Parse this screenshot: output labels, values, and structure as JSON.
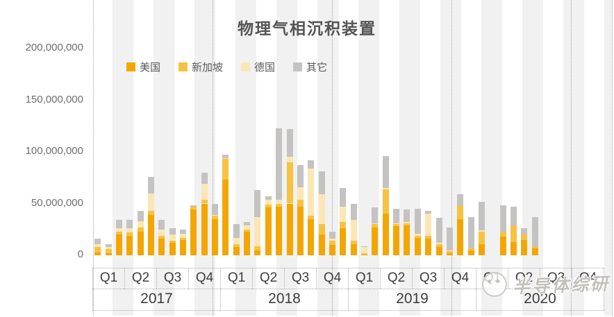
{
  "title": "物理气相沉积装置",
  "legend": {
    "items": [
      {
        "label": "美国",
        "color": "#F3A600"
      },
      {
        "label": "新加坡",
        "color": "#F6C242"
      },
      {
        "label": "德国",
        "color": "#FAE7B5"
      },
      {
        "label": "其它",
        "color": "#C4C3C1"
      }
    ]
  },
  "y_axis": {
    "tick_labels": [
      "200,000,000",
      "150,000,000",
      "100,000,000",
      "50,000,000",
      "0"
    ],
    "tick_values_millions": [
      200,
      150,
      100,
      50,
      0
    ]
  },
  "x_axis": {
    "quarter_labels": [
      "Q1",
      "Q2",
      "Q3",
      "Q4"
    ],
    "years": [
      "2017",
      "2018",
      "2019",
      "2020"
    ]
  },
  "watermark": {
    "text": "半导体综研"
  },
  "chart_data": {
    "type": "bar",
    "stacked": true,
    "title": "物理气相沉积装置",
    "unit": "values in millions (×1,000,000), read from y-axis",
    "ylim_millions": [
      0,
      200
    ],
    "grid": false,
    "legend_position": "top",
    "months": [
      "2017-01",
      "2017-02",
      "2017-03",
      "2017-04",
      "2017-05",
      "2017-06",
      "2017-07",
      "2017-08",
      "2017-09",
      "2017-10",
      "2017-11",
      "2017-12",
      "2018-01",
      "2018-02",
      "2018-03",
      "2018-04",
      "2018-05",
      "2018-06",
      "2018-07",
      "2018-08",
      "2018-09",
      "2018-10",
      "2018-11",
      "2018-12",
      "2019-01",
      "2019-02",
      "2019-03",
      "2019-04",
      "2019-05",
      "2019-06",
      "2019-07",
      "2019-08",
      "2019-09",
      "2019-10",
      "2019-11",
      "2019-12",
      "2020-01",
      "2020-02",
      "2020-03",
      "2020-04",
      "2020-05",
      "2020-06",
      "2020-07",
      "2020-08",
      "2020-09",
      "2020-10",
      "2020-11",
      "2020-12"
    ],
    "series": [
      {
        "name": "美国",
        "color": "#F3A600",
        "values": [
          3,
          2,
          20,
          19,
          23,
          39,
          16,
          12,
          15,
          44,
          50,
          35,
          73,
          8,
          23,
          5,
          46,
          47,
          50,
          47,
          35,
          20,
          10,
          26,
          11,
          1,
          27,
          40,
          28,
          29,
          17,
          16,
          8,
          2,
          35,
          5,
          11,
          0,
          18,
          13,
          15,
          7,
          null,
          null,
          null,
          null,
          null,
          null
        ]
      },
      {
        "name": "新加坡",
        "color": "#F6C242",
        "values": [
          5,
          4,
          3,
          3,
          4,
          4,
          3,
          2,
          2,
          3,
          4,
          3,
          20,
          3,
          2,
          4,
          3,
          3,
          40,
          7,
          3,
          10,
          4,
          6,
          3,
          1,
          3,
          24,
          2,
          2,
          2,
          3,
          3,
          2,
          13,
          2,
          12,
          0,
          5,
          16,
          5,
          2,
          null,
          null,
          null,
          null,
          null,
          null
        ]
      },
      {
        "name": "德国",
        "color": "#FAE7B5",
        "values": [
          3,
          2,
          3,
          4,
          6,
          17,
          6,
          6,
          4,
          0,
          15,
          1,
          1,
          6,
          4,
          28,
          5,
          4,
          5,
          12,
          46,
          29,
          2,
          15,
          20,
          6,
          1,
          1,
          1,
          1,
          2,
          21,
          1,
          1,
          0,
          0,
          1,
          0,
          0,
          0,
          0,
          0,
          null,
          null,
          null,
          null,
          null,
          null
        ]
      },
      {
        "name": "其它",
        "color": "#C4C3C1",
        "values": [
          5,
          3,
          8,
          8,
          10,
          16,
          9,
          6,
          4,
          1,
          11,
          11,
          3,
          13,
          3,
          26,
          3,
          69,
          27,
          21,
          8,
          22,
          7,
          18,
          16,
          1,
          15,
          31,
          14,
          12,
          24,
          3,
          24,
          22,
          11,
          30,
          28,
          0,
          25,
          18,
          6,
          28,
          null,
          null,
          null,
          null,
          null,
          null
        ]
      }
    ]
  }
}
